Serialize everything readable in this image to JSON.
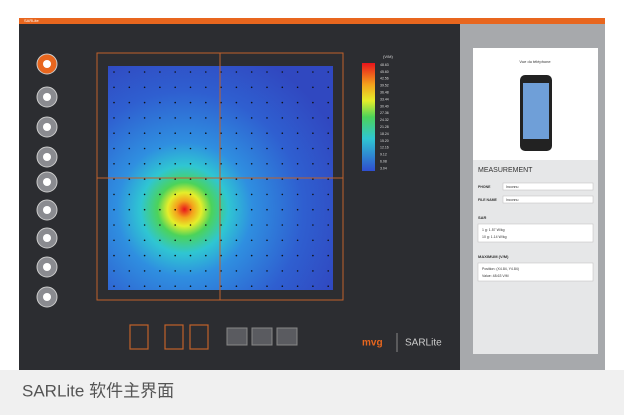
{
  "window": {
    "title": "SARLite"
  },
  "colorbar": {
    "unit": "(V/M)",
    "labels": [
      "48.63",
      "45.60",
      "42.56",
      "39.52",
      "36.48",
      "33.44",
      "30.40",
      "27.36",
      "24.32",
      "21.28",
      "18.24",
      "15.20",
      "12.16",
      "9.12",
      "6.08",
      "3.04"
    ]
  },
  "panel": {
    "phone_view": "Vue du téléphone",
    "measurement": "MEASUREMENT",
    "phone_label": "PHONE",
    "phone_value": "Inconnu",
    "file_label": "FILE NAME",
    "file_value": "Inconnu",
    "sar_title": "SAR",
    "sar_1g": "1 g: 1.57 W/kg",
    "sar_10g": "10 g: 1.14 W/kg",
    "max_title": "MAXIMUM (V/M)",
    "max_position": "Position: (X4.84, Y4.84)",
    "max_value": "Value: 48.63 V/M"
  },
  "brand": {
    "logo": "mvg",
    "product": "SARLite"
  },
  "caption": "SARLite 软件主界面"
}
